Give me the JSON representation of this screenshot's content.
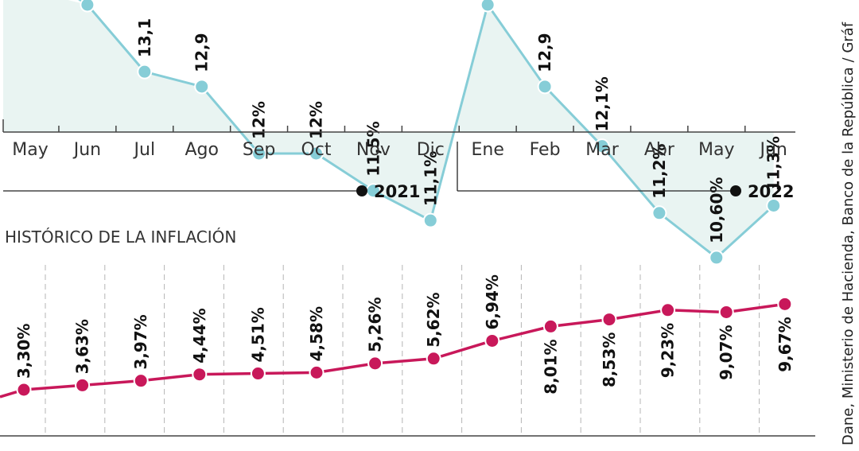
{
  "colors": {
    "top_line": "#86cdd7",
    "top_fill": "#e9f4f2",
    "bottom_line": "#c8185a",
    "axis": "#444444",
    "grid": "#b5b5b5"
  },
  "source_text": "Dane, Ministerio de Hacienda, Banco de la República / Gráf",
  "chart_data": [
    {
      "type": "area",
      "categories": [
        "May",
        "Jun",
        "Jul",
        "Ago",
        "Sep",
        "Oct",
        "Nov",
        "Dic",
        "Ene",
        "Feb",
        "Mar",
        "Abr",
        "May",
        "Jun"
      ],
      "values": [
        null,
        14.0,
        13.1,
        12.9,
        12.0,
        12.0,
        11.5,
        11.1,
        14.0,
        12.9,
        12.1,
        11.2,
        10.6,
        11.3
      ],
      "labels": [
        "",
        "",
        "13,1",
        "12,9",
        "12%",
        "12%",
        "11,5%",
        "11,1%",
        "",
        "12,9",
        "12,1%",
        "11,2%",
        "10,60%",
        "11,3%"
      ],
      "years": [
        {
          "label": "2021"
        },
        {
          "label": "2022"
        }
      ],
      "grid": false
    },
    {
      "type": "line",
      "title": "HISTÓRICO DE LA INFLACIÓN",
      "values": [
        3.3,
        3.63,
        3.97,
        4.44,
        4.51,
        4.58,
        5.26,
        5.62,
        6.94,
        8.01,
        8.53,
        9.23,
        9.07,
        9.67
      ],
      "labels": [
        "3,30%",
        "3,63%",
        "3,97%",
        "4,44%",
        "4,51%",
        "4,58%",
        "5,26%",
        "5,62%",
        "6,94%",
        "8,01%",
        "8,53%",
        "9,23%",
        "9,07%",
        "9,67%"
      ],
      "label_position": [
        "above",
        "above",
        "above",
        "above",
        "above",
        "above",
        "above",
        "above",
        "above",
        "below",
        "below",
        "below",
        "below",
        "below"
      ],
      "x_ticks": [
        "1",
        "1",
        "1",
        "1",
        "1",
        "1",
        "1",
        "1",
        "2",
        "2",
        "2",
        "2",
        "2",
        "2"
      ],
      "grid": true
    }
  ]
}
